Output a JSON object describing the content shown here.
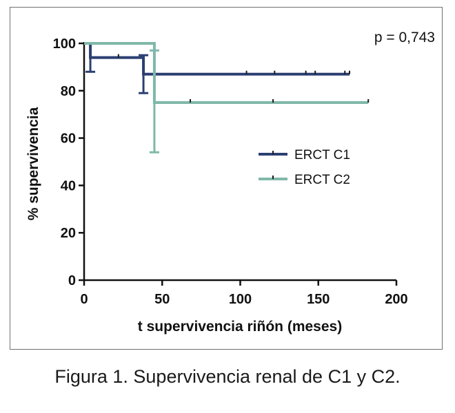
{
  "chart_data": {
    "type": "line",
    "subtype": "kaplan-meier-step",
    "title": "",
    "xlabel": "t supervivencia riñón (meses)",
    "ylabel": "% supervivencia",
    "xlim": [
      0,
      200
    ],
    "ylim": [
      0,
      100
    ],
    "x_ticks": [
      0,
      50,
      100,
      150,
      200
    ],
    "y_ticks": [
      0,
      20,
      40,
      60,
      80,
      100
    ],
    "grid": false,
    "legend_position": "center-right",
    "annotation": "p = 0,743",
    "series": [
      {
        "name": "ERCT C1",
        "color": "#2b3f72",
        "steps": [
          {
            "x": 0,
            "y": 100
          },
          {
            "x": 4,
            "y": 94
          },
          {
            "x": 38,
            "y": 87
          }
        ],
        "end_x": 170,
        "censored": [
          22,
          104,
          122,
          142,
          148,
          167,
          170
        ],
        "error_bars": [
          {
            "x": 4,
            "lo": 88,
            "hi": 100
          },
          {
            "x": 38,
            "lo": 79,
            "hi": 95
          }
        ]
      },
      {
        "name": "ERCT C2",
        "color": "#7fb8a8",
        "steps": [
          {
            "x": 0,
            "y": 100
          },
          {
            "x": 45,
            "y": 75
          }
        ],
        "end_x": 182,
        "censored": [
          68,
          121,
          182
        ],
        "error_bars": [
          {
            "x": 45,
            "lo": 54,
            "hi": 97
          }
        ]
      }
    ]
  },
  "caption": "Figura 1. Supervivencia renal de C1 y C2."
}
